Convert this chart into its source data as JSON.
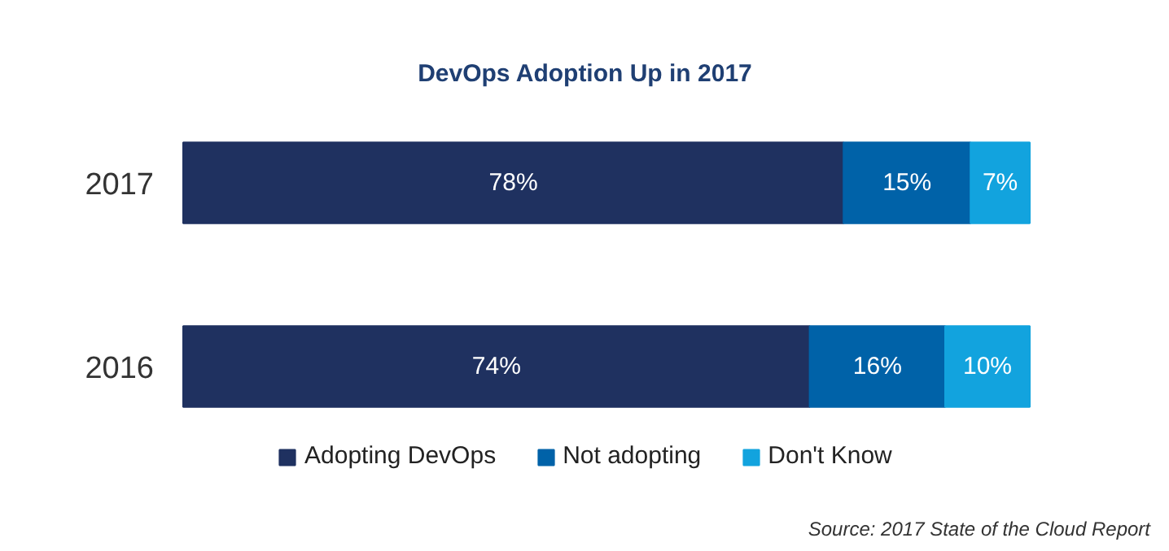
{
  "chart_data": {
    "type": "bar",
    "orientation": "horizontal",
    "stacked": true,
    "title": "DevOps Adoption Up in 2017",
    "categories": [
      "2017",
      "2016"
    ],
    "series": [
      {
        "name": "Adopting DevOps",
        "color": "#1f3160",
        "values": [
          78,
          74
        ],
        "value_labels": [
          "78%",
          "74%"
        ]
      },
      {
        "name": "Not adopting",
        "color": "#0062a8",
        "values": [
          15,
          16
        ],
        "value_labels": [
          "15%",
          "16%"
        ]
      },
      {
        "name": "Don't Know",
        "color": "#12a3de",
        "values": [
          7,
          10
        ],
        "value_labels": [
          "7%",
          "10%"
        ]
      }
    ],
    "legend": "bottom",
    "tick_labels": "y",
    "annotations": [
      "Source: 2017 State of the Cloud Report"
    ]
  }
}
